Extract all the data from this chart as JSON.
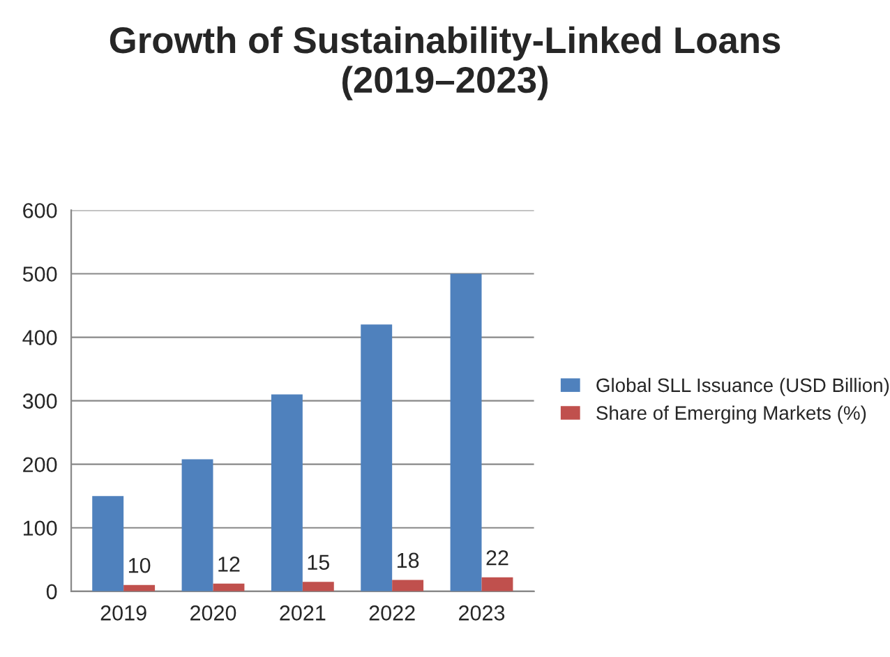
{
  "chart_data": {
    "type": "bar",
    "title": "Growth of Sustainability-Linked Loans (2019–2023)",
    "categories": [
      "2019",
      "2020",
      "2021",
      "2022",
      "2023"
    ],
    "series": [
      {
        "name": "Global SLL Issuance (USD Billion)",
        "color": "#4f81bd",
        "values": [
          150,
          208,
          310,
          420,
          500
        ]
      },
      {
        "name": "Share of Emerging Markets (%)",
        "color": "#c0504d",
        "values": [
          10,
          12,
          15,
          18,
          22
        ],
        "value_labels": [
          "10",
          "12",
          "15",
          "18",
          "22"
        ]
      }
    ],
    "ylim": [
      0,
      600
    ],
    "yticks": [
      0,
      100,
      200,
      300,
      400,
      500,
      600
    ],
    "grid": "y",
    "legend": "right"
  }
}
